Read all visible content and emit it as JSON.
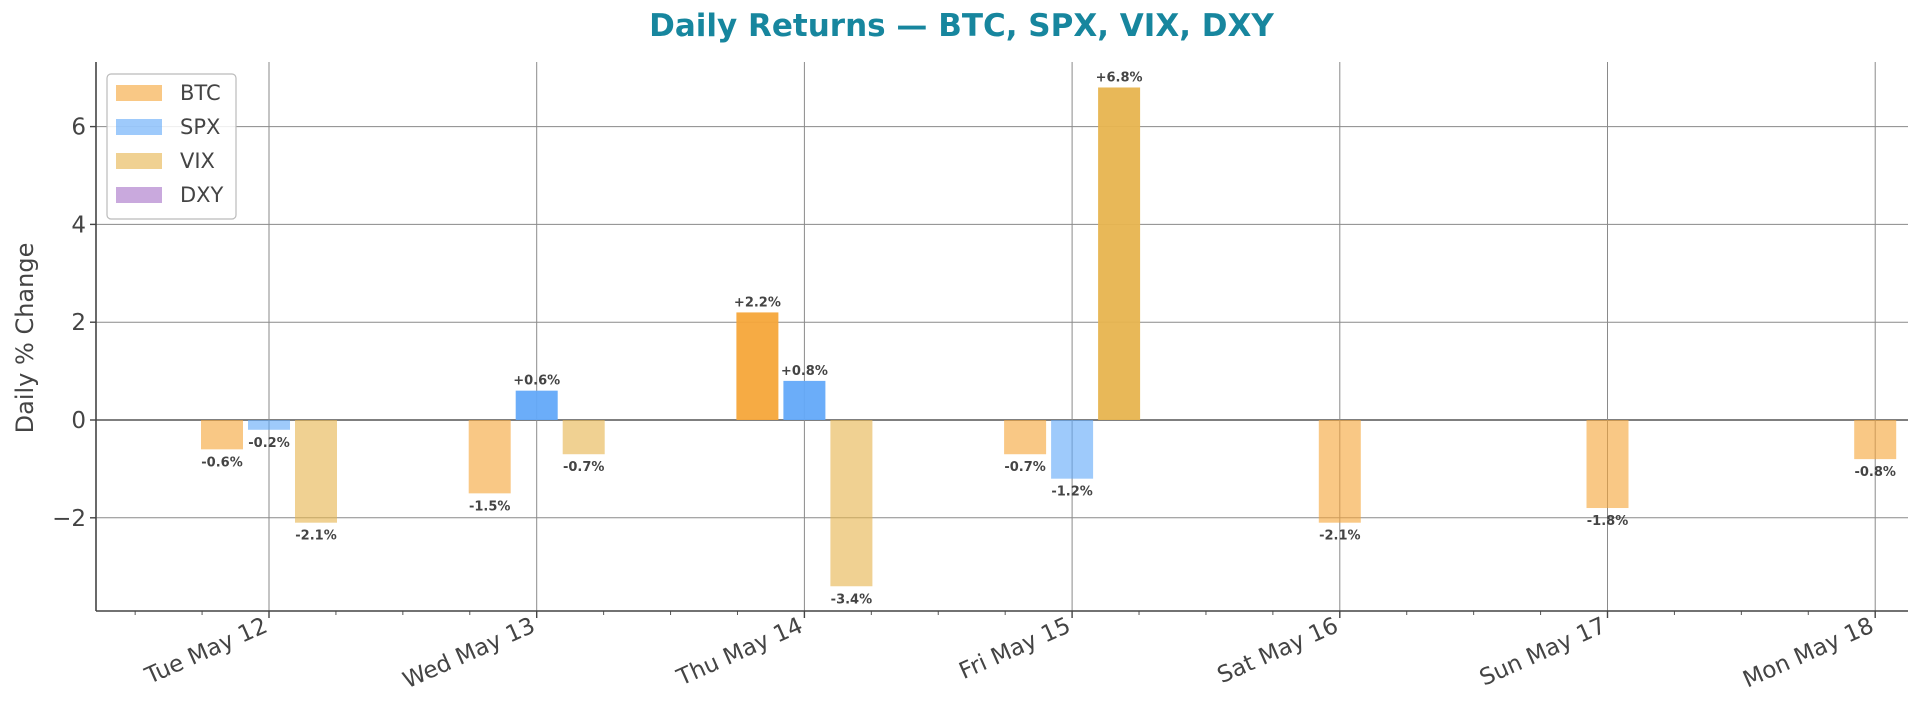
{
  "chart_data": {
    "type": "bar",
    "title": "Daily Returns — BTC, SPX, VIX, DXY",
    "xlabel": "",
    "ylabel": "Daily % Change",
    "categories": [
      "Tue May 12",
      "Wed May 13",
      "Thu May 14",
      "Fri May 15",
      "Sat May 16",
      "Sun May 17",
      "Mon May 18"
    ],
    "yticks": [
      -2,
      0,
      2,
      4,
      6
    ],
    "ytick_labels": [
      "−2",
      "0",
      "2",
      "4",
      "6"
    ],
    "ylim": [
      -3.9,
      7.3
    ],
    "grid": true,
    "legend_position": "top-left",
    "series": [
      {
        "name": "BTC",
        "color": "#f6a63a",
        "values": [
          -0.6,
          -1.5,
          2.2,
          -0.7,
          -2.1,
          -1.8,
          -0.8
        ],
        "labels": [
          "-0.6%",
          "-1.5%",
          "+2.2%",
          "-0.7%",
          "-2.1%",
          "-1.8%",
          "-0.8%"
        ]
      },
      {
        "name": "SPX",
        "color": "#63a9f9",
        "values": [
          -0.2,
          0.6,
          0.8,
          -1.2,
          null,
          null,
          null
        ],
        "labels": [
          "-0.2%",
          "+0.6%",
          "+0.8%",
          "-1.2%",
          "",
          "",
          ""
        ]
      },
      {
        "name": "VIX",
        "color": "#e7b44f",
        "values": [
          -2.1,
          -0.7,
          -3.4,
          6.8,
          null,
          null,
          null
        ],
        "labels": [
          "-2.1%",
          "-0.7%",
          "-3.4%",
          "+6.8%",
          "",
          "",
          ""
        ]
      },
      {
        "name": "DXY",
        "color": "#a874c8",
        "values": [
          null,
          null,
          null,
          null,
          null,
          null,
          null
        ],
        "labels": [
          "",
          "",
          "",
          "",
          "",
          "",
          ""
        ]
      }
    ]
  }
}
